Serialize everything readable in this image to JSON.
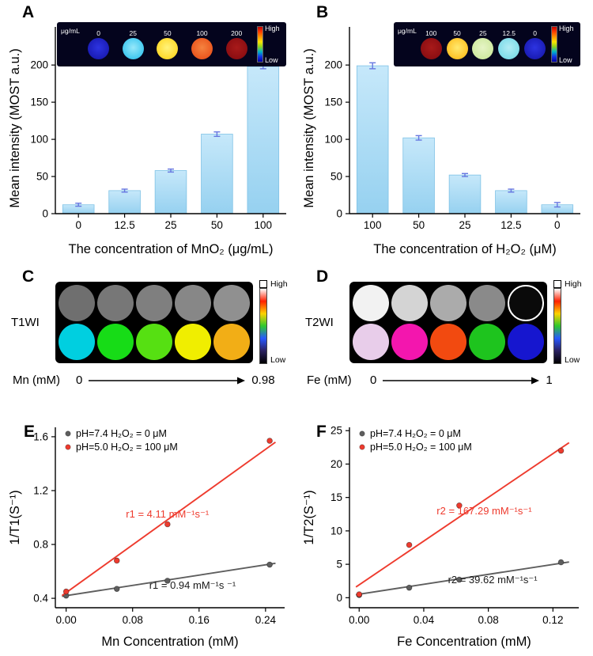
{
  "panels": {
    "A": {
      "letter": "A",
      "inset": {
        "unit_label": "μg/mL",
        "high_label": "High",
        "low_label": "Low",
        "bg": "#04041d",
        "colorbar": [
          "#c40000",
          "#ff4000",
          "#ff9400",
          "#ffe400",
          "#8cd41e",
          "#00b4c8",
          "#1432e6",
          "#0000a0"
        ],
        "items": [
          {
            "label": "0",
            "color": "#1a1cb4",
            "inner": "#2d34e2"
          },
          {
            "label": "25",
            "color": "#3fc8f0",
            "inner": "#97e8fa"
          },
          {
            "label": "50",
            "color": "#ffd92a",
            "inner": "#fff37a"
          },
          {
            "label": "100",
            "color": "#ea561e",
            "inner": "#f58340"
          },
          {
            "label": "200",
            "color": "#8c0e12",
            "inner": "#a81a1a"
          }
        ]
      }
    },
    "B": {
      "letter": "B",
      "inset": {
        "unit_label": "μg/mL",
        "high_label": "High",
        "low_label": "Low",
        "bg": "#04041d",
        "colorbar": [
          "#c40000",
          "#ff4000",
          "#ff9400",
          "#ffe400",
          "#8cd41e",
          "#00b4c8",
          "#1432e6",
          "#0000a0"
        ],
        "items": [
          {
            "label": "100",
            "color": "#8c0e12",
            "inner": "#a81a1a"
          },
          {
            "label": "50",
            "color": "#ffc225",
            "inner": "#ffe96e"
          },
          {
            "label": "25",
            "color": "#cfe9a0",
            "inner": "#e6f4c6"
          },
          {
            "label": "12.5",
            "color": "#7edbe8",
            "inner": "#b2ecf4"
          },
          {
            "label": "0",
            "color": "#1a1cb4",
            "inner": "#2d34e2"
          }
        ]
      }
    },
    "C": {
      "letter": "C",
      "label": "T1WI",
      "high_label": "High",
      "low_label": "Low",
      "colorbar": [
        "#ffffff",
        "#ff2000",
        "#ffd200",
        "#2ec82e",
        "#2858ff",
        "#2a2060",
        "#000000"
      ],
      "axis": {
        "label": "Mn (mM)",
        "min": "0",
        "max": "0.98"
      },
      "rows": [
        {
          "circles": [
            {
              "color": "#6f6f6f"
            },
            {
              "color": "#777777"
            },
            {
              "color": "#7f7f7f"
            },
            {
              "color": "#878787"
            },
            {
              "color": "#909090"
            }
          ]
        },
        {
          "circles": [
            {
              "color": "#00cfe0"
            },
            {
              "color": "#17dc17"
            },
            {
              "color": "#56e012"
            },
            {
              "color": "#f0ee00"
            },
            {
              "color": "#f2ae16"
            }
          ]
        }
      ]
    },
    "D": {
      "letter": "D",
      "label": "T2WI",
      "high_label": "High",
      "low_label": "Low",
      "colorbar": [
        "#ffffff",
        "#ff2000",
        "#ffd200",
        "#2ec82e",
        "#2858ff",
        "#2a2060",
        "#000000"
      ],
      "axis": {
        "label": "Fe (mM)",
        "min": "0",
        "max": "1"
      },
      "rows": [
        {
          "circles": [
            {
              "color": "#f2f2f2"
            },
            {
              "color": "#d4d4d4"
            },
            {
              "color": "#ababab"
            },
            {
              "color": "#8a8a8a"
            },
            {
              "color": "#0a0a0a",
              "ring": true
            }
          ]
        },
        {
          "circles": [
            {
              "color": "#e8cdea"
            },
            {
              "color": "#f316ae"
            },
            {
              "color": "#f24a10"
            },
            {
              "color": "#1ec41e"
            },
            {
              "color": "#1616cf"
            }
          ]
        }
      ]
    },
    "E": {
      "letter": "E"
    },
    "F": {
      "letter": "F"
    }
  },
  "chart_data": [
    {
      "id": "A",
      "type": "bar",
      "title": "",
      "categories": [
        "0",
        "12.5",
        "25",
        "50",
        "100"
      ],
      "values": [
        12,
        31,
        58,
        107,
        198
      ],
      "errors": [
        2,
        2,
        2,
        3,
        3
      ],
      "xlabel": "The concentration of MnO₂ (μg/mL)",
      "ylabel": "Mean intensity (MOST a.u.)",
      "ylim": [
        0,
        230
      ],
      "yticks": [
        0,
        50,
        100,
        150,
        200
      ],
      "bar_color_top": "#c6e8fa",
      "bar_color_bottom": "#96d1f0",
      "bar_edge": "#7fc2e6",
      "error_color": "#6677e0"
    },
    {
      "id": "B",
      "type": "bar",
      "title": "",
      "categories": [
        "100",
        "50",
        "25",
        "12.5",
        "0"
      ],
      "values": [
        199,
        102,
        52,
        31,
        12
      ],
      "errors": [
        4,
        3,
        2,
        2,
        3
      ],
      "xlabel": "The concentration of H₂O₂ (μM)",
      "ylabel": "Mean intensity (MOST a.u.)",
      "ylim": [
        0,
        230
      ],
      "yticks": [
        0,
        50,
        100,
        150,
        200
      ],
      "bar_color_top": "#c6e8fa",
      "bar_color_bottom": "#96d1f0",
      "bar_edge": "#7fc2e6",
      "error_color": "#6677e0"
    },
    {
      "id": "E",
      "type": "scatter",
      "xlabel": "Mn Concentration (mM)",
      "ylabel": "1/T1(S⁻¹)",
      "xlim": [
        -0.013,
        0.263
      ],
      "ylim": [
        0.33,
        1.67
      ],
      "xticks": [
        0,
        0.08,
        0.16,
        0.24
      ],
      "xtick_labels": [
        "0.00",
        "0.08",
        "0.16",
        "0.24"
      ],
      "yticks": [
        0.4,
        0.8,
        1.2,
        1.6
      ],
      "ytick_labels": [
        "0.4",
        "0.8",
        "1.2",
        "1.6"
      ],
      "legend_position": "top-left",
      "series": [
        {
          "name": "pH=7.4 H₂O₂ = 0 μM",
          "color": "#5e5e5e",
          "x": [
            0.0,
            0.061,
            0.122,
            0.245
          ],
          "y": [
            0.42,
            0.47,
            0.53,
            0.65
          ],
          "fit": [
            -0.005,
            0.415,
            0.252,
            0.66
          ]
        },
        {
          "name": "pH=5.0 H₂O₂ = 100 μM",
          "color": "#ee3b2e",
          "x": [
            0.0,
            0.061,
            0.122,
            0.245
          ],
          "y": [
            0.45,
            0.68,
            0.95,
            1.57
          ],
          "fit": [
            -0.005,
            0.42,
            0.252,
            1.56
          ]
        }
      ],
      "annotations": [
        {
          "text": "r1 = 4.11 mM⁻¹s⁻¹",
          "color": "#ee3b2e",
          "x": 0.072,
          "y": 1.0
        },
        {
          "text": "r1 = 0.94 mM⁻¹s ⁻¹",
          "color": "#1a1a1a",
          "x": 0.1,
          "y": 0.47
        }
      ]
    },
    {
      "id": "F",
      "type": "scatter",
      "xlabel": "Fe Concentration (mM)",
      "ylabel": "1/T2(S⁻¹)",
      "xlim": [
        -0.006,
        0.136
      ],
      "ylim": [
        -1.5,
        25.5
      ],
      "xticks": [
        0,
        0.04,
        0.08,
        0.12
      ],
      "xtick_labels": [
        "0.00",
        "0.04",
        "0.08",
        "0.12"
      ],
      "yticks": [
        0,
        5,
        10,
        15,
        20,
        25
      ],
      "ytick_labels": [
        "0",
        "5",
        "10",
        "15",
        "20",
        "25"
      ],
      "legend_position": "top-left",
      "series": [
        {
          "name": "pH=7.4 H₂O₂ = 0 μM",
          "color": "#5e5e5e",
          "x": [
            0.0,
            0.031,
            0.062,
            0.125
          ],
          "y": [
            0.4,
            1.5,
            2.7,
            5.3
          ],
          "fit": [
            -0.002,
            0.45,
            0.13,
            5.35
          ]
        },
        {
          "name": "pH=5.0 H₂O₂ = 100 μM",
          "color": "#ee3b2e",
          "x": [
            0.0,
            0.031,
            0.062,
            0.125
          ],
          "y": [
            0.5,
            7.9,
            13.8,
            22.0
          ],
          "fit": [
            -0.002,
            1.6,
            0.13,
            23.2
          ]
        }
      ],
      "annotations": [
        {
          "text": "r2 = 167.29 mM⁻¹s⁻¹",
          "color": "#ee3b2e",
          "x": 0.048,
          "y": 12.5
        },
        {
          "text": "r2 = 39.62 mM⁻¹s⁻¹",
          "color": "#1a1a1a",
          "x": 0.055,
          "y": 2.2
        }
      ]
    }
  ]
}
